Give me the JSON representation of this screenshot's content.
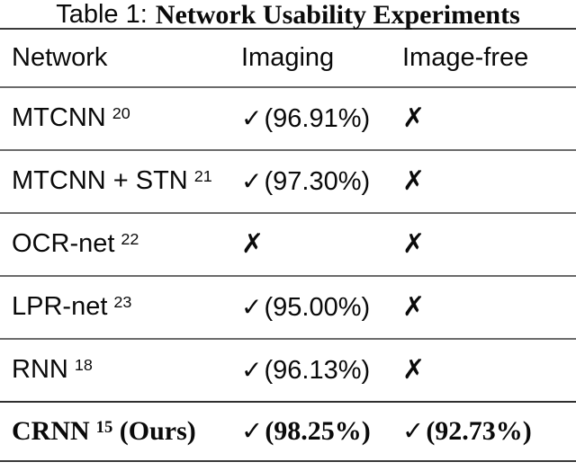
{
  "title": {
    "label": "Table 1:",
    "text": "Network Usability Experiments"
  },
  "columns": {
    "network": "Network",
    "imaging": "Imaging",
    "image_free": "Image-free"
  },
  "colors": {
    "background": "#ffffff",
    "text": "#0a0a0a",
    "rule_heavy": "#3a3a3a",
    "rule_light": "#6b6b6b",
    "rule_pre_emphasis": "#2f2f2f"
  },
  "rows": [
    {
      "name": "MTCNN",
      "ref": "20",
      "name_suffix": "",
      "imaging_mark": "✓",
      "imaging_value": "(96.91%)",
      "imagefree_mark": "✗",
      "imagefree_value": ""
    },
    {
      "name": "MTCNN + STN",
      "ref": "21",
      "name_suffix": "",
      "imaging_mark": "✓",
      "imaging_value": "(97.30%)",
      "imagefree_mark": "✗",
      "imagefree_value": ""
    },
    {
      "name": "OCR-net",
      "ref": "22",
      "name_suffix": "",
      "imaging_mark": "✗",
      "imaging_value": "",
      "imagefree_mark": "✗",
      "imagefree_value": ""
    },
    {
      "name": "LPR-net",
      "ref": "23",
      "name_suffix": "",
      "imaging_mark": "✓",
      "imaging_value": "(95.00%)",
      "imagefree_mark": "✗",
      "imagefree_value": ""
    },
    {
      "name": "RNN",
      "ref": "18",
      "name_suffix": "",
      "imaging_mark": "✓",
      "imaging_value": "(96.13%)",
      "imagefree_mark": "✗",
      "imagefree_value": ""
    },
    {
      "name": "CRNN",
      "ref": "15",
      "name_suffix": " (Ours)",
      "imaging_mark": "✓",
      "imaging_value": "(98.25%)",
      "imagefree_mark": "✓",
      "imagefree_value": "(92.73%)"
    }
  ]
}
